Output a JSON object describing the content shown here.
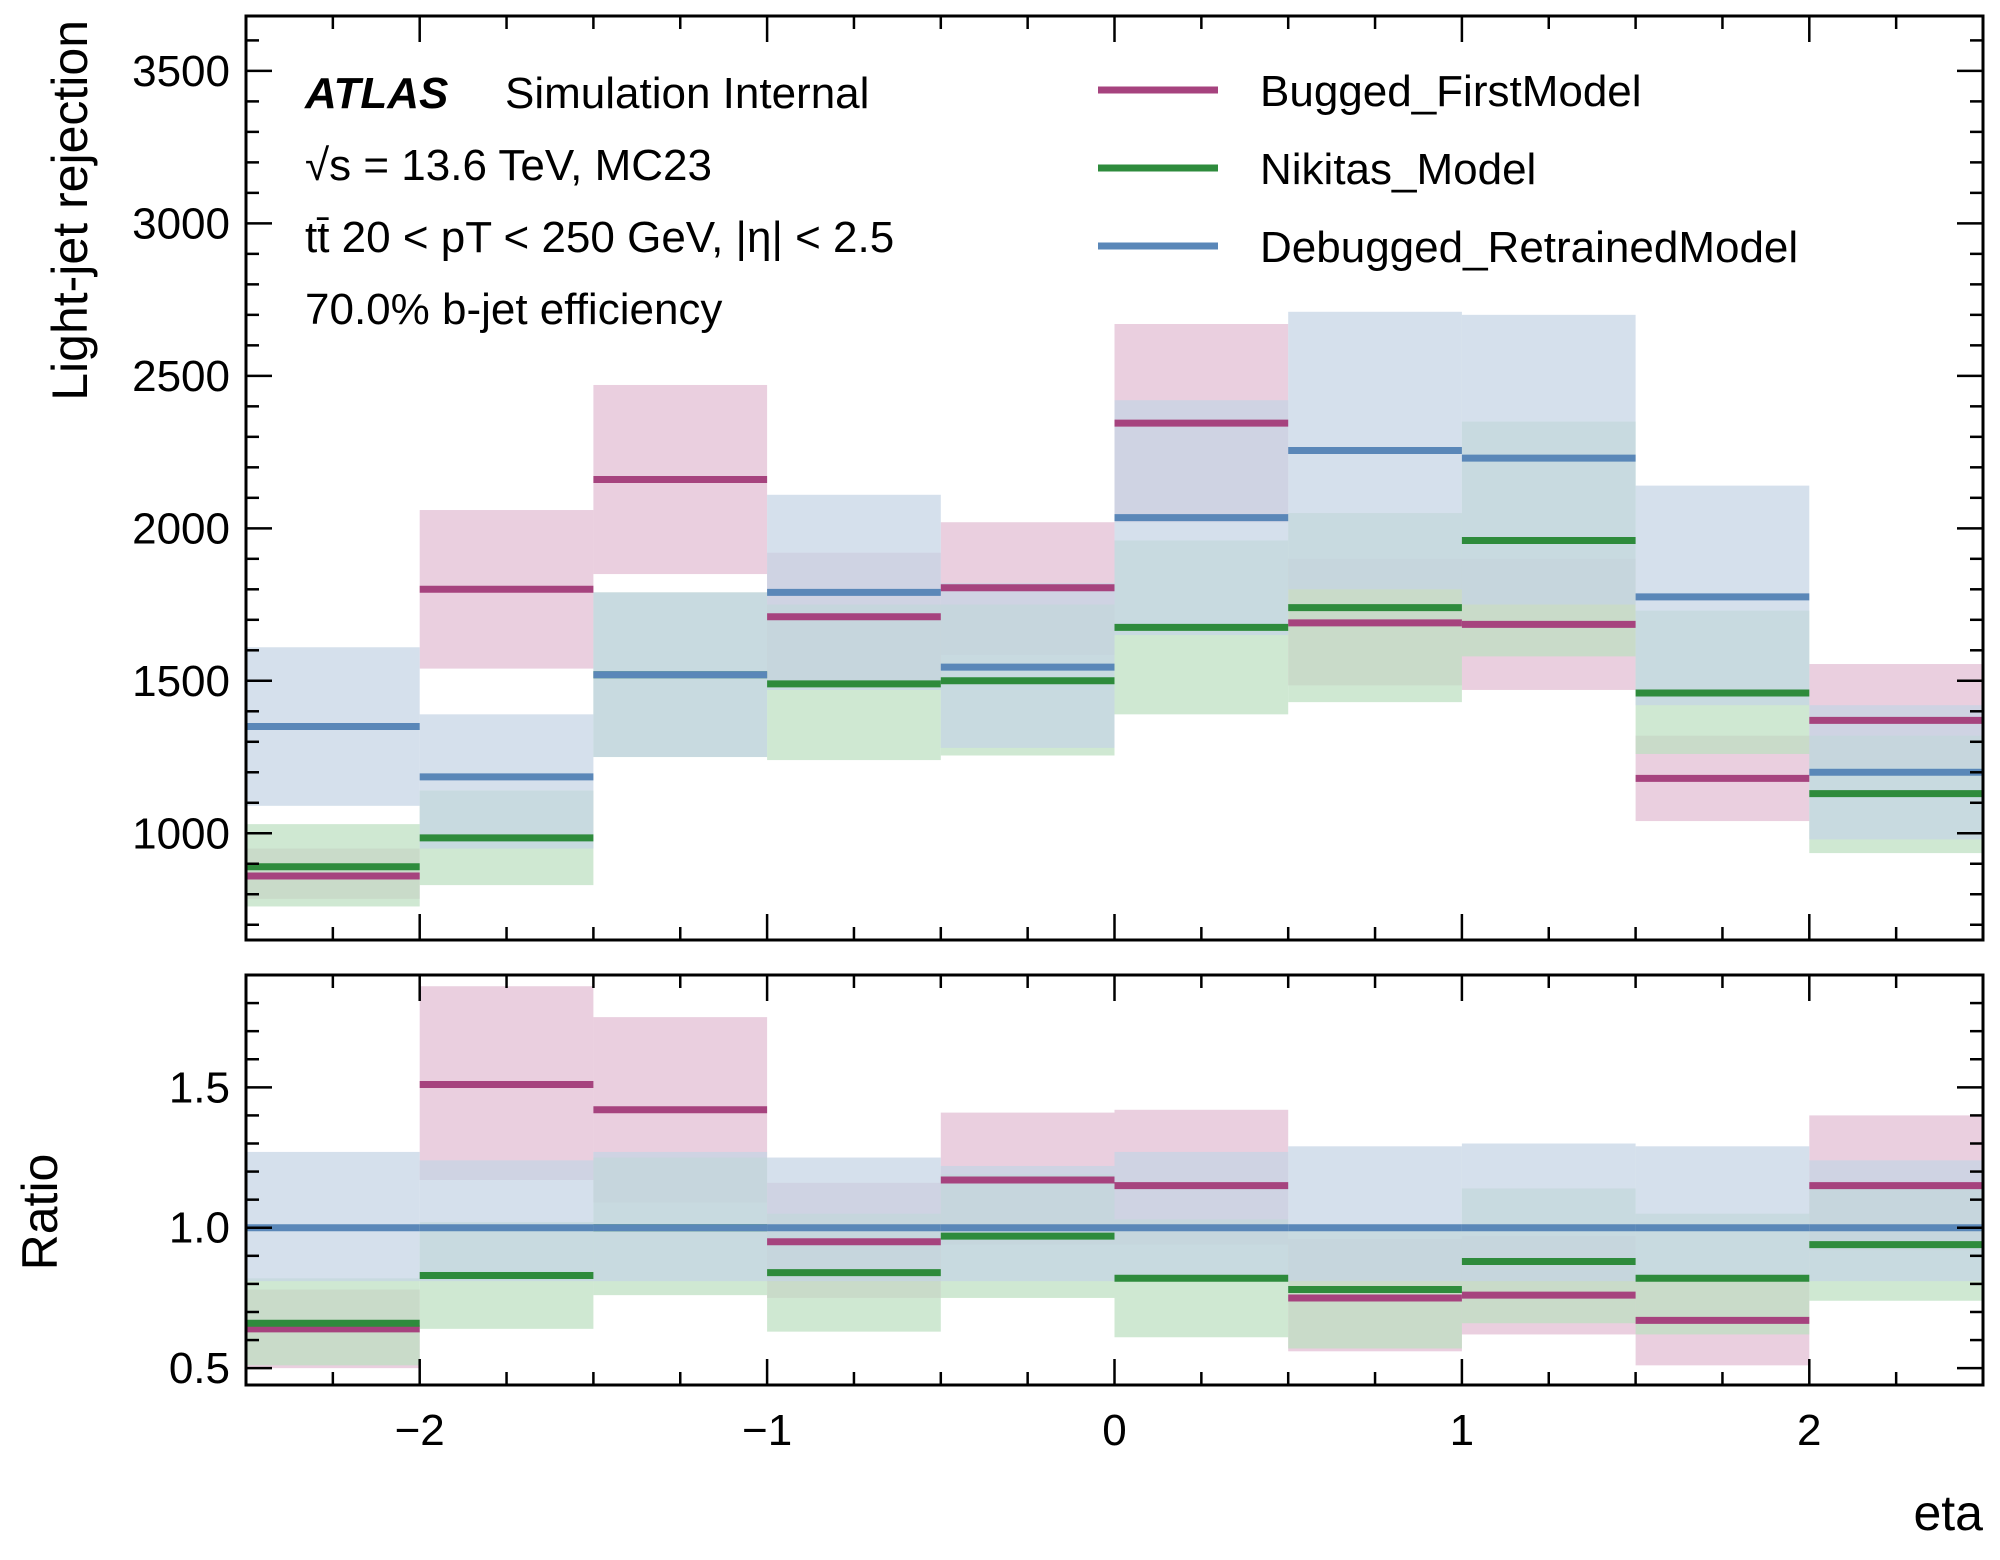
{
  "chart_data": {
    "type": "step-histogram-with-ratio",
    "x_edges": [
      -2.5,
      -2.0,
      -1.5,
      -1.0,
      -0.5,
      0.0,
      0.5,
      1.0,
      1.5,
      2.0,
      2.5
    ],
    "xlim": [
      -2.5,
      2.5
    ],
    "x_ticks": [
      -2,
      -1,
      0,
      1,
      2
    ],
    "x_tick_labels": [
      "−2",
      "−1",
      "0",
      "1",
      "2"
    ],
    "xlabel": "eta",
    "top_panel": {
      "ylabel": "Light-jet rejection",
      "ylim": [
        650,
        3680
      ],
      "y_ticks": [
        1000,
        1500,
        2000,
        2500,
        3000,
        3500
      ],
      "y_tick_labels": [
        "1000",
        "1500",
        "2000",
        "2500",
        "3000",
        "3500"
      ]
    },
    "ratio_panel": {
      "ylabel": "Ratio",
      "ylim": [
        0.44,
        1.9
      ],
      "y_ticks": [
        0.5,
        1.0,
        1.5
      ],
      "y_tick_labels": [
        "0.5",
        "1.0",
        "1.5"
      ],
      "reference": "Debugged_RetrainedModel"
    },
    "annotation": {
      "experiment": "ATLAS",
      "status": "Simulation Internal",
      "line2": "√s = 13.6 TeV, MC23",
      "line3": "tt̄ 20 < pT < 250 GeV, |η| < 2.5",
      "line4": "70.0% b-jet efficiency"
    },
    "legend_position": "top-right",
    "series": [
      {
        "name": "Bugged_FirstModel",
        "color": "#a6437e",
        "band_color": "#e2bcd3",
        "values": [
          860,
          1800,
          2160,
          1710,
          1805,
          2345,
          1690,
          1685,
          1180,
          1370
        ],
        "err_low": [
          785,
          1540,
          1850,
          1500,
          1585,
          2020,
          1485,
          1470,
          1040,
          1215
        ],
        "err_high": [
          950,
          2060,
          2470,
          1920,
          2020,
          2670,
          1900,
          1900,
          1320,
          1555
        ],
        "ratio": [
          0.64,
          1.51,
          1.42,
          0.95,
          1.17,
          1.15,
          0.75,
          0.76,
          0.67,
          1.15
        ],
        "ratio_low": [
          0.5,
          1.17,
          1.09,
          0.75,
          0.94,
          0.94,
          0.56,
          0.62,
          0.51,
          0.92
        ],
        "ratio_high": [
          0.78,
          1.86,
          1.75,
          1.16,
          1.41,
          1.42,
          0.96,
          0.97,
          0.83,
          1.4
        ]
      },
      {
        "name": "Nikitas_Model",
        "color": "#2e8b3c",
        "band_color": "#bcdfc1",
        "values": [
          890,
          985,
          1520,
          1490,
          1500,
          1675,
          1740,
          1960,
          1460,
          1130
        ],
        "err_low": [
          760,
          830,
          1250,
          1240,
          1255,
          1390,
          1430,
          1580,
          1260,
          935
        ],
        "err_high": [
          1030,
          1140,
          1790,
          1750,
          1750,
          1960,
          2050,
          2350,
          1730,
          1320
        ],
        "ratio": [
          0.66,
          0.83,
          1.0,
          0.84,
          0.97,
          0.82,
          0.78,
          0.88,
          0.82,
          0.94
        ],
        "ratio_low": [
          0.51,
          0.64,
          0.76,
          0.63,
          0.75,
          0.61,
          0.57,
          0.66,
          0.62,
          0.74
        ],
        "ratio_high": [
          0.82,
          1.02,
          1.25,
          1.05,
          1.19,
          1.03,
          0.99,
          1.14,
          1.05,
          1.15
        ]
      },
      {
        "name": "Debugged_RetrainedModel",
        "color": "#5a87b8",
        "band_color": "#c5d4e4",
        "values": [
          1350,
          1185,
          1520,
          1790,
          1545,
          2035,
          2255,
          2230,
          1775,
          1200
        ],
        "err_low": [
          1090,
          950,
          1250,
          1470,
          1280,
          1650,
          1800,
          1750,
          1420,
          980
        ],
        "err_high": [
          1610,
          1390,
          1790,
          2110,
          1820,
          2420,
          2710,
          2700,
          2140,
          1420
        ],
        "ratio": [
          1.0,
          1.0,
          1.0,
          1.0,
          1.0,
          1.0,
          1.0,
          1.0,
          1.0,
          1.0
        ],
        "ratio_low": [
          0.81,
          0.81,
          0.81,
          0.81,
          0.81,
          0.81,
          0.81,
          0.81,
          0.81,
          0.81
        ],
        "ratio_high": [
          1.27,
          1.24,
          1.27,
          1.25,
          1.22,
          1.27,
          1.29,
          1.3,
          1.29,
          1.24
        ]
      }
    ]
  }
}
